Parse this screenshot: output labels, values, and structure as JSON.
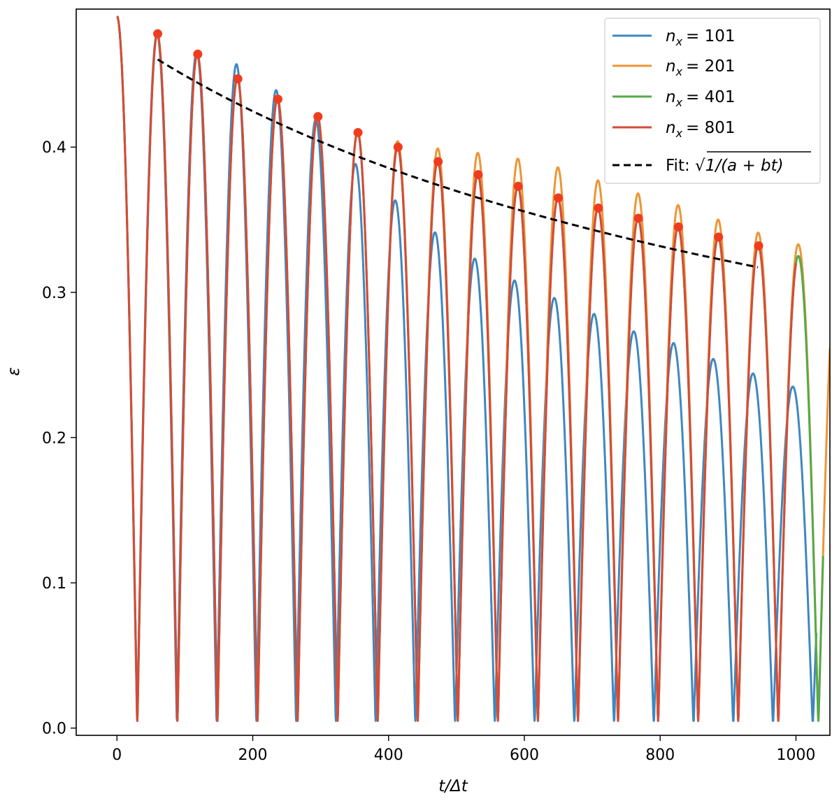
{
  "chart_data": {
    "type": "line",
    "title": "",
    "xlabel": "t/Δt",
    "ylabel": "ε",
    "xlim": [
      -60,
      1050
    ],
    "ylim": [
      -0.005,
      0.495
    ],
    "xticks": [
      0,
      200,
      400,
      600,
      800,
      1000
    ],
    "yticks": [
      0.0,
      0.1,
      0.2,
      0.3,
      0.4
    ],
    "xtick_labels": [
      "0",
      "200",
      "400",
      "600",
      "800",
      "1000"
    ],
    "ytick_labels": [
      "0.0",
      "0.1",
      "0.2",
      "0.3",
      "0.4"
    ],
    "legend_position": "top-right",
    "oscillation": {
      "start_value": 0.49,
      "half_period": 59.0,
      "phase": 30.0,
      "min_value": 0.005
    },
    "series": [
      {
        "name": "n_x = 101",
        "label_base": "n",
        "label_sub": "x",
        "label_value": "= 101",
        "color": "#3f87c0",
        "x_end": 1030,
        "period_scale": 0.992,
        "peak_x": [
          60,
          119,
          178,
          237,
          296,
          355,
          414,
          473,
          532,
          591,
          650,
          709,
          768,
          827,
          886,
          945,
          1004
        ],
        "peaks": [
          0.478,
          0.465,
          0.457,
          0.439,
          0.419,
          0.388,
          0.363,
          0.341,
          0.323,
          0.308,
          0.296,
          0.285,
          0.273,
          0.265,
          0.254,
          0.244,
          0.235
        ]
      },
      {
        "name": "n_x = 201",
        "label_base": "n",
        "label_sub": "x",
        "label_value": "= 201",
        "color": "#ee9535",
        "x_end": 1050,
        "period_scale": 1.0,
        "peak_x": [
          60,
          119,
          178,
          237,
          296,
          355,
          414,
          473,
          532,
          591,
          650,
          709,
          768,
          827,
          886,
          945,
          1004
        ],
        "peaks": [
          0.478,
          0.464,
          0.448,
          0.434,
          0.422,
          0.411,
          0.404,
          0.399,
          0.396,
          0.392,
          0.386,
          0.377,
          0.368,
          0.36,
          0.35,
          0.341,
          0.333
        ]
      },
      {
        "name": "n_x = 401",
        "label_base": "n",
        "label_sub": "x",
        "label_value": "= 401",
        "color": "#55a949",
        "x_end": 1040,
        "period_scale": 1.0,
        "peak_x": [
          60,
          119,
          178,
          237,
          296,
          355,
          414,
          473,
          532,
          591,
          650,
          709,
          768,
          827,
          886,
          945,
          1004
        ],
        "peaks": [
          0.478,
          0.464,
          0.447,
          0.433,
          0.421,
          0.41,
          0.4,
          0.39,
          0.381,
          0.373,
          0.365,
          0.358,
          0.351,
          0.345,
          0.338,
          0.332,
          0.325
        ]
      },
      {
        "name": "n_x = 801",
        "label_base": "n",
        "label_sub": "x",
        "label_value": "= 801",
        "color": "#d44b3a",
        "x_end": 1000,
        "period_scale": 1.0,
        "peak_x": [
          60,
          119,
          178,
          237,
          296,
          355,
          414,
          473,
          532,
          591,
          650,
          709,
          768,
          827,
          886,
          945,
          1004
        ],
        "peaks": [
          0.478,
          0.464,
          0.447,
          0.433,
          0.421,
          0.41,
          0.4,
          0.39,
          0.381,
          0.373,
          0.365,
          0.358,
          0.351,
          0.345,
          0.338,
          0.332,
          0.325
        ]
      }
    ],
    "fit": {
      "name": "Fit: √1/(a + bt)",
      "label_prefix": "Fit: ",
      "label_math": "1/(a + bt)",
      "color": "#000000",
      "x": [
        60,
        945
      ],
      "formula": "sqrt(1/(a+b*t))",
      "a": 4.365,
      "b": 0.0059
    },
    "peak_markers": {
      "color": "#f03c1e",
      "x": [
        60,
        119,
        178,
        237,
        296,
        355,
        414,
        473,
        532,
        591,
        650,
        709,
        768,
        827,
        886,
        945
      ],
      "y": [
        0.478,
        0.464,
        0.447,
        0.433,
        0.421,
        0.41,
        0.4,
        0.39,
        0.381,
        0.373,
        0.365,
        0.358,
        0.351,
        0.345,
        0.338,
        0.332
      ]
    }
  }
}
